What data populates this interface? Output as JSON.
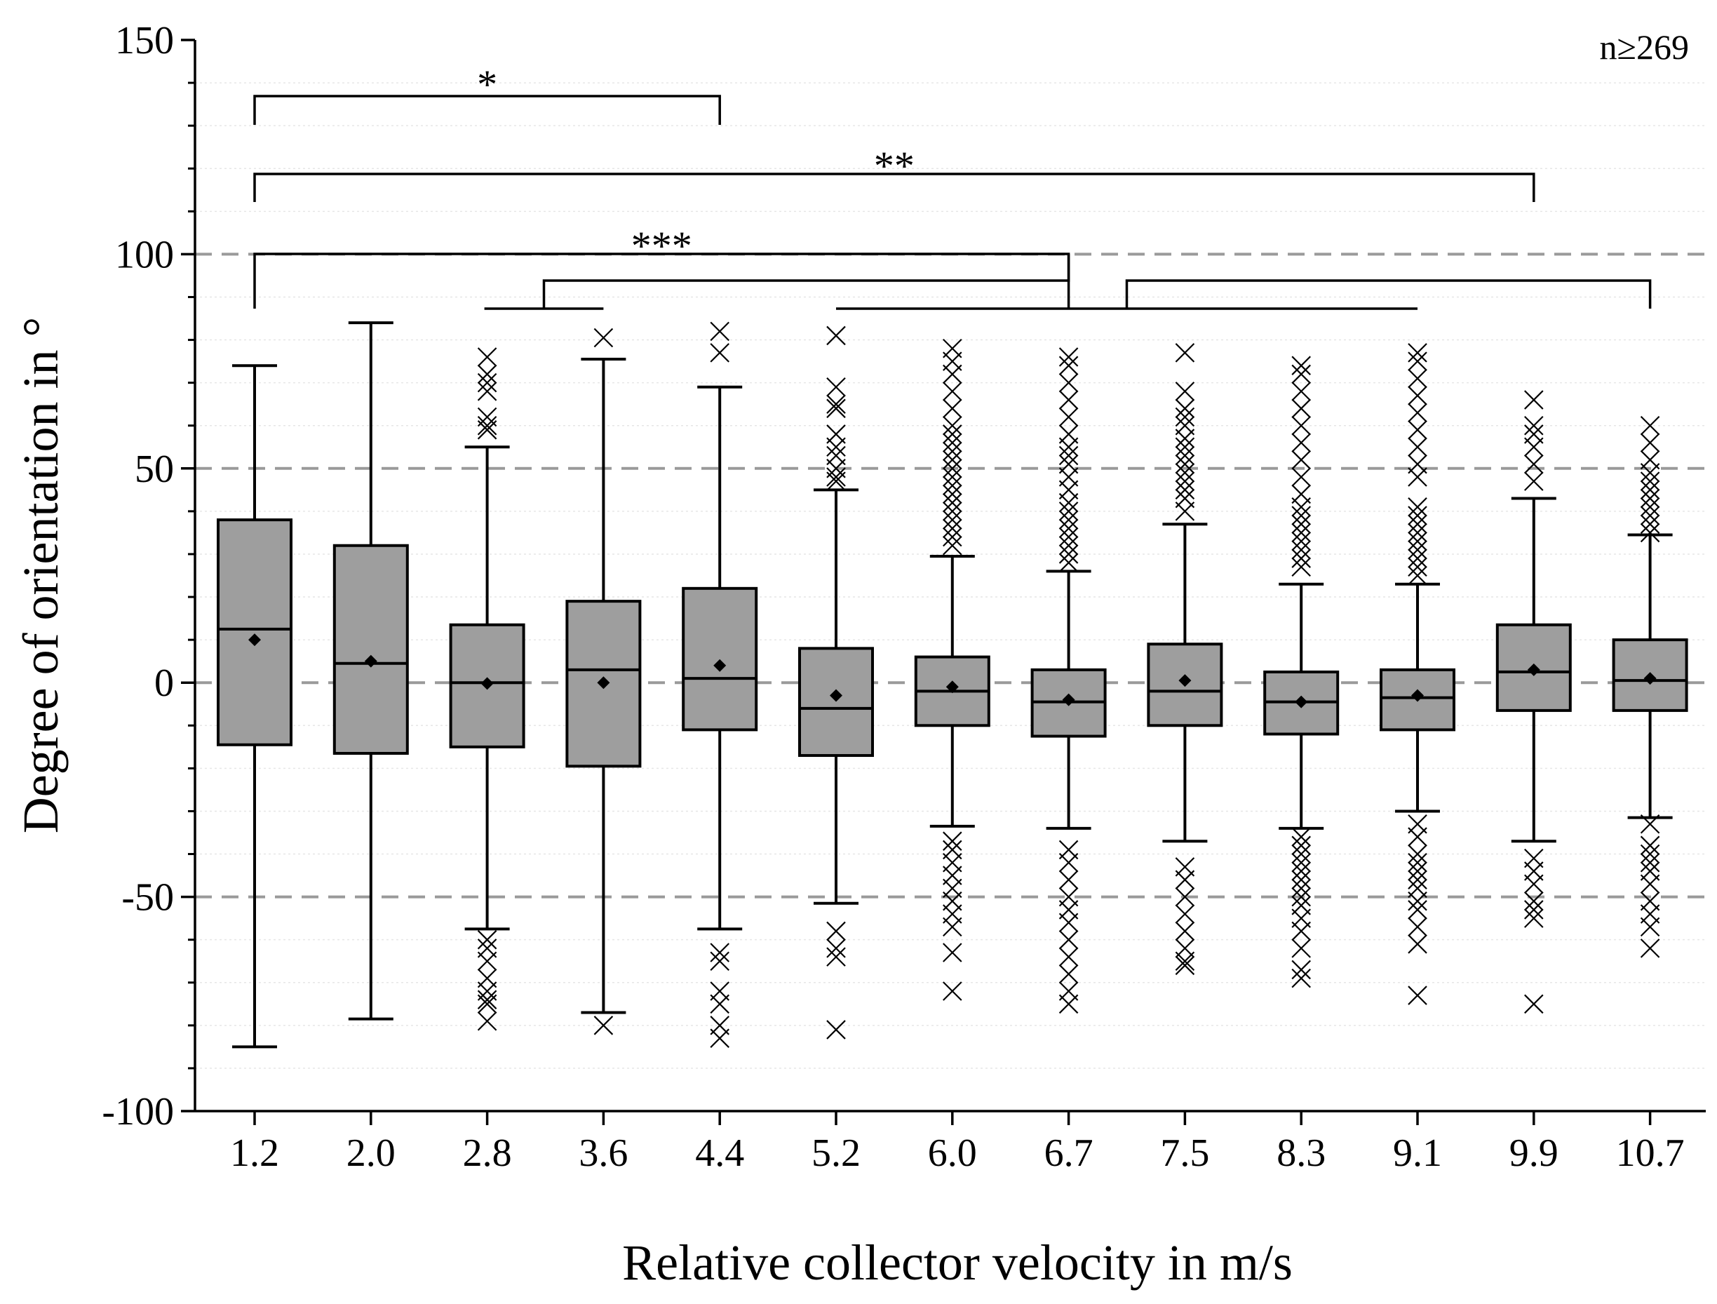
{
  "chart_data": {
    "type": "box",
    "xlabel": "Relative collector velocity in m/s",
    "ylabel": "Degree of orientation in °",
    "ylim": [
      -100,
      150
    ],
    "yticks": [
      -100,
      -50,
      0,
      50,
      100,
      150
    ],
    "ytick_labels": [
      "-100",
      "-50",
      "0",
      "50",
      "100",
      "150"
    ],
    "reference_lines": [
      -50,
      0,
      50,
      100
    ],
    "annotation": "n≥269",
    "categories": [
      "1.2",
      "2.0",
      "2.8",
      "3.6",
      "4.4",
      "5.2",
      "6.0",
      "6.7",
      "7.5",
      "8.3",
      "9.1",
      "9.9",
      "10.7"
    ],
    "boxes": [
      {
        "q1": -14.5,
        "median": 12.5,
        "q3": 38,
        "whisker_low": -85,
        "whisker_high": 74,
        "mean": 10,
        "outliers": []
      },
      {
        "q1": -16.5,
        "median": 4.5,
        "q3": 32,
        "whisker_low": -78.5,
        "whisker_high": 84,
        "mean": 5,
        "outliers": []
      },
      {
        "q1": -15,
        "median": 0,
        "q3": 13.5,
        "whisker_low": -57.5,
        "whisker_high": 55,
        "mean": -0.2,
        "outliers": [
          76,
          72,
          70,
          68,
          62,
          60,
          59,
          -60,
          -62,
          -65,
          -69,
          -72,
          -74,
          -75,
          -79
        ]
      },
      {
        "q1": -19.5,
        "median": 3,
        "q3": 19,
        "whisker_low": -77,
        "whisker_high": 75.5,
        "mean": 0,
        "outliers": [
          80.5,
          -80
        ]
      },
      {
        "q1": -11,
        "median": 1,
        "q3": 22,
        "whisker_low": -57.5,
        "whisker_high": 69,
        "mean": 4,
        "outliers": [
          82,
          77,
          -63,
          -65,
          -72,
          -75,
          -80,
          -83
        ]
      },
      {
        "q1": -17,
        "median": -6,
        "q3": 8,
        "whisker_low": -51.5,
        "whisker_high": 45,
        "mean": -3,
        "outliers": [
          81,
          69,
          65,
          64,
          58,
          55,
          53,
          50,
          48,
          47,
          -58,
          -62,
          -64,
          -81
        ]
      },
      {
        "q1": -10,
        "median": -2,
        "q3": 6,
        "whisker_low": -33.5,
        "whisker_high": 29.5,
        "mean": -1,
        "outliers": [
          78,
          75,
          72,
          68,
          64,
          60,
          58,
          56,
          54,
          52,
          50,
          48,
          46,
          44,
          42,
          40,
          38,
          36,
          34,
          32,
          -37,
          -39,
          -42,
          -45,
          -48,
          -51,
          -54,
          -57,
          -63,
          -72
        ]
      },
      {
        "q1": -12.5,
        "median": -4.5,
        "q3": 3,
        "whisker_low": -34,
        "whisker_high": 26,
        "mean": -4,
        "outliers": [
          76,
          74,
          70,
          66,
          62,
          58,
          55,
          53,
          51,
          48,
          45,
          42,
          40,
          38,
          36,
          34,
          32,
          30,
          28,
          -39,
          -42,
          -46,
          -50,
          -53,
          -56,
          -60,
          -64,
          -68,
          -72,
          -75
        ]
      },
      {
        "q1": -10,
        "median": -2,
        "q3": 9,
        "whisker_low": -37,
        "whisker_high": 37,
        "mean": 0.5,
        "outliers": [
          77,
          68,
          64,
          62,
          60,
          57,
          55,
          53,
          51,
          49,
          47,
          45,
          43,
          40,
          -43,
          -46,
          -50,
          -54,
          -58,
          -62,
          -65,
          -66
        ]
      },
      {
        "q1": -12,
        "median": -4.5,
        "q3": 2.5,
        "whisker_low": -34,
        "whisker_high": 23,
        "mean": -4.5,
        "outliers": [
          74,
          72,
          68,
          64,
          60,
          56,
          52,
          48,
          44,
          41,
          39,
          37,
          35,
          33,
          31,
          29,
          27,
          -36,
          -38,
          -40,
          -42,
          -44,
          -46,
          -48,
          -50,
          -52,
          -55,
          -58,
          -62,
          -67,
          -69
        ]
      },
      {
        "q1": -11,
        "median": -3.5,
        "q3": 3,
        "whisker_low": -30,
        "whisker_high": 23,
        "mean": -3,
        "outliers": [
          77,
          75,
          71,
          67,
          63,
          59,
          55,
          51,
          48,
          41,
          39,
          37,
          35,
          33,
          31,
          29,
          27,
          25,
          -33,
          -36,
          -40,
          -42,
          -44,
          -46,
          -48,
          -51,
          -53,
          -57,
          -61,
          -73
        ]
      },
      {
        "q1": -6.5,
        "median": 2.5,
        "q3": 13.5,
        "whisker_low": -37,
        "whisker_high": 43,
        "mean": 3,
        "outliers": [
          66,
          60,
          58,
          55,
          51,
          47,
          -41,
          -44,
          -47,
          -51,
          -53,
          -55,
          -75
        ]
      },
      {
        "q1": -6.5,
        "median": 0.5,
        "q3": 10,
        "whisker_low": -31.5,
        "whisker_high": 34.5,
        "mean": 1,
        "outliers": [
          60,
          56,
          52,
          49,
          47,
          45,
          43,
          41,
          39,
          37,
          35,
          -33,
          -38,
          -40,
          -42,
          -44,
          -47,
          -51,
          -54,
          -57,
          -62
        ]
      }
    ],
    "significance": [
      {
        "label": "*",
        "from": "1.2",
        "to": "4.4"
      },
      {
        "label": "**",
        "from": "1.2",
        "to": "9.9"
      },
      {
        "label": "***",
        "from": "1.2",
        "to": "6.7"
      },
      {
        "label": "",
        "from": "2.8",
        "to": "3.6"
      },
      {
        "label": "",
        "from": "5.2",
        "to": "9.1"
      }
    ]
  }
}
